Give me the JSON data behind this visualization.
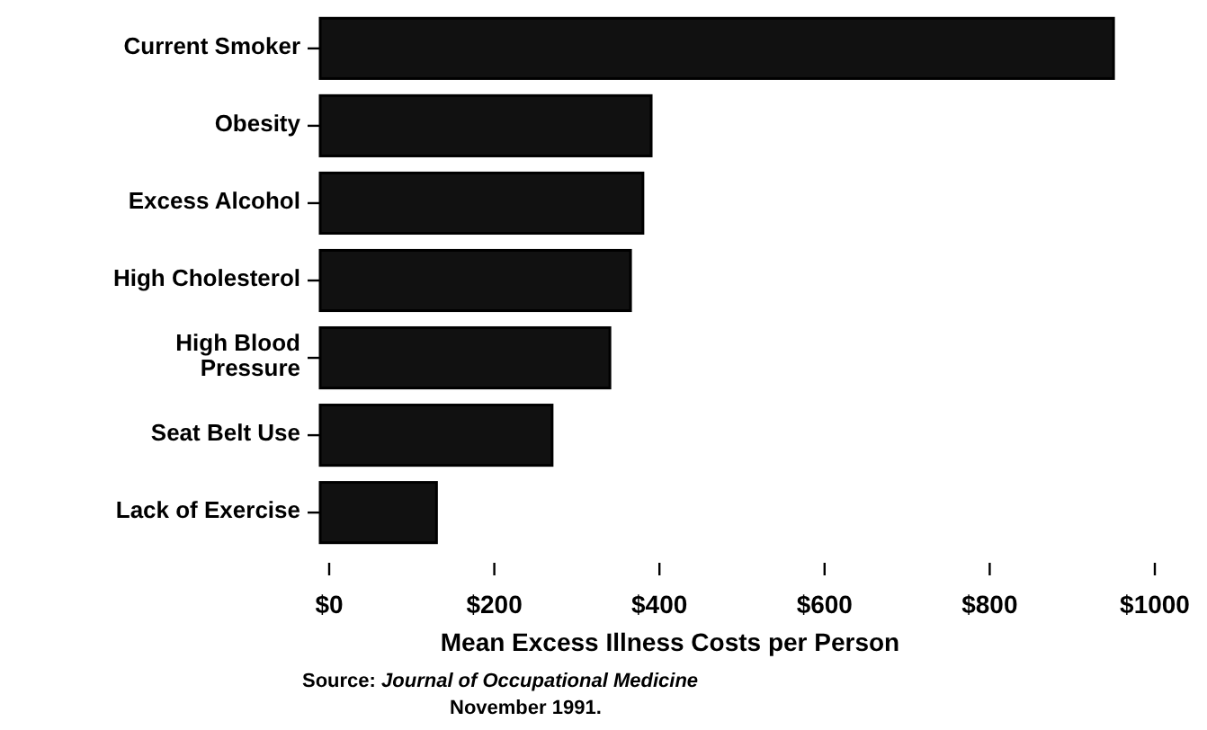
{
  "chart_data": {
    "type": "bar",
    "orientation": "horizontal",
    "categories": [
      "Current Smoker",
      "Obesity",
      "Excess Alcohol",
      "High Cholesterol",
      "High Blood\nPressure",
      "Seat Belt Use",
      "Lack of Exercise"
    ],
    "values": [
      950,
      390,
      380,
      365,
      340,
      270,
      130
    ],
    "color": "#111111",
    "xlim": [
      0,
      1000
    ],
    "xticks": [
      {
        "value": 0,
        "label": "$0"
      },
      {
        "value": 200,
        "label": "$200"
      },
      {
        "value": 400,
        "label": "$400"
      },
      {
        "value": 600,
        "label": "$600"
      },
      {
        "value": 800,
        "label": "$800"
      },
      {
        "value": 1000,
        "label": "$1000"
      }
    ],
    "xlabel": "Mean Excess Illness Costs per Person",
    "annotations": [
      "Source: *Journal of Occupational Medicine*\nNovember 1991."
    ],
    "grid": false
  }
}
